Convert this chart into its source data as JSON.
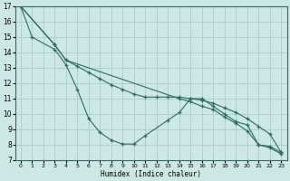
{
  "xlabel": "Humidex (Indice chaleur)",
  "bg_color": "#cce8e4",
  "grid_color": "#aacccc",
  "line_color": "#2d6b63",
  "xlim": [
    -0.5,
    23.5
  ],
  "ylim": [
    7,
    17
  ],
  "xticks": [
    0,
    1,
    2,
    3,
    4,
    5,
    6,
    7,
    8,
    9,
    10,
    11,
    12,
    13,
    14,
    15,
    16,
    17,
    18,
    19,
    20,
    21,
    22,
    23
  ],
  "yticks": [
    7,
    8,
    9,
    10,
    11,
    12,
    13,
    14,
    15,
    16,
    17
  ],
  "line1_x": [
    0,
    1,
    3,
    4,
    5,
    6,
    7,
    8,
    9,
    10,
    11,
    13,
    14,
    15,
    16,
    17,
    18,
    19,
    20,
    21,
    22,
    23
  ],
  "line1_y": [
    17,
    15,
    14.2,
    13.2,
    11.6,
    9.7,
    8.8,
    8.3,
    8.05,
    8.05,
    8.6,
    9.6,
    10.1,
    11.0,
    11.0,
    10.5,
    10.0,
    9.5,
    9.3,
    8.0,
    7.9,
    7.5
  ],
  "line2_x": [
    0,
    3,
    4,
    5,
    6,
    7,
    8,
    9,
    10,
    11,
    12,
    13,
    14,
    15,
    16,
    17,
    18,
    19,
    20,
    21,
    22,
    23
  ],
  "line2_y": [
    17,
    14.5,
    13.5,
    13.1,
    12.7,
    12.3,
    11.9,
    11.6,
    11.3,
    11.1,
    11.1,
    11.1,
    11.1,
    11.0,
    10.9,
    10.7,
    10.4,
    10.1,
    9.7,
    9.2,
    8.7,
    7.5
  ],
  "line3_x": [
    0,
    3,
    4,
    14,
    15,
    16,
    17,
    18,
    19,
    20,
    21,
    22,
    23
  ],
  "line3_y": [
    17,
    14.5,
    13.5,
    11.0,
    10.8,
    10.5,
    10.3,
    9.8,
    9.4,
    8.9,
    8.0,
    7.8,
    7.4
  ]
}
